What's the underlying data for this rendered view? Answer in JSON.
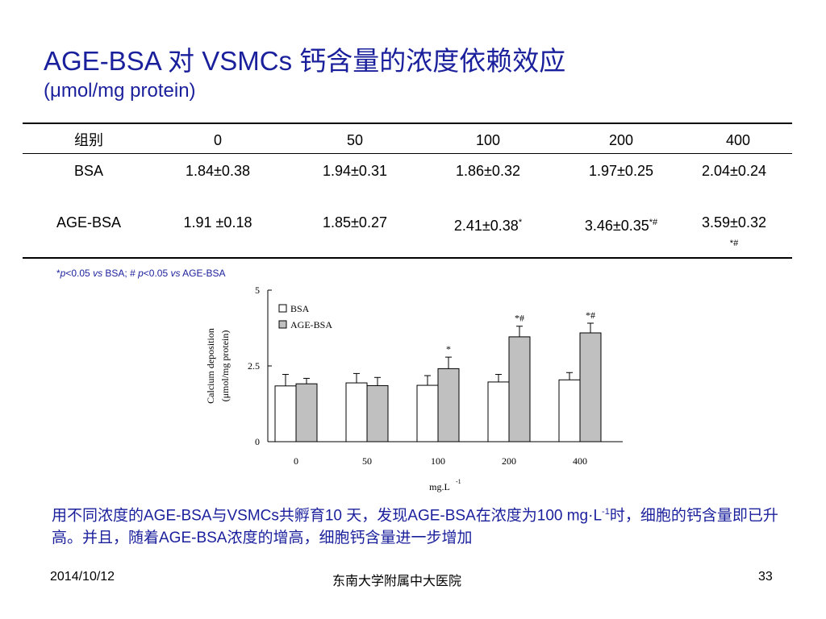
{
  "title": "AGE-BSA 对 VSMCs 钙含量的浓度依赖效应",
  "subtitle": "(μmol/mg protein)",
  "table": {
    "header": [
      "组别",
      "0",
      "50",
      "100",
      "200",
      "400"
    ],
    "rows": [
      {
        "label": "BSA",
        "cells": [
          "1.84±0.38",
          "1.94±0.31",
          "1.86±0.32",
          "1.97±0.25",
          "2.04±0.24"
        ]
      },
      {
        "label": "AGE-BSA",
        "cells": [
          "1.91 ±0.18",
          "1.85±0.27",
          "2.41±0.38*",
          "3.46±0.35*#",
          "3.59±0.32*#"
        ]
      }
    ]
  },
  "footnote": {
    "star": "*",
    "p1": "p",
    "t1": "<0.05 ",
    "vs1": "vs",
    "t2": " BSA; # ",
    "p2": "p",
    "t3": "<0.05 ",
    "vs2": "vs",
    "t4": " AGE-BSA"
  },
  "chart_data": {
    "type": "bar",
    "categories": [
      "0",
      "50",
      "100",
      "200",
      "400"
    ],
    "series": [
      {
        "name": "BSA",
        "values": [
          1.84,
          1.94,
          1.86,
          1.97,
          2.04
        ],
        "errors": [
          0.38,
          0.31,
          0.32,
          0.25,
          0.24
        ],
        "color": "#ffffff"
      },
      {
        "name": "AGE-BSA",
        "values": [
          1.91,
          1.85,
          2.41,
          3.46,
          3.59
        ],
        "errors": [
          0.18,
          0.27,
          0.38,
          0.35,
          0.32
        ],
        "color": "#c0c0c0"
      }
    ],
    "annotations": [
      "",
      "",
      "*",
      "*#",
      "*#"
    ],
    "xlabel": "mg.L",
    "xlabel_sup": "-1",
    "ylabel": [
      "Calcium deposition",
      "(μmol/mg protein)"
    ],
    "ylim": [
      0,
      5
    ],
    "yticks": [
      "0",
      "2.5",
      "5"
    ],
    "legend_position": "top-left",
    "grid": false
  },
  "paragraph": {
    "line1a": "用不同浓度的AGE-BSA与VSMCs共孵育10 天，发现AGE-BSA在浓度为100 mg·L",
    "line1sup": "-1",
    "line1b": "时，细胞的钙含量即已升高。并且，随着AGE-BSA浓度的增高，细胞钙含量进一步增加"
  },
  "footer": {
    "date": "2014/10/12",
    "org": "东南大学附属中大医院",
    "page": "33"
  }
}
